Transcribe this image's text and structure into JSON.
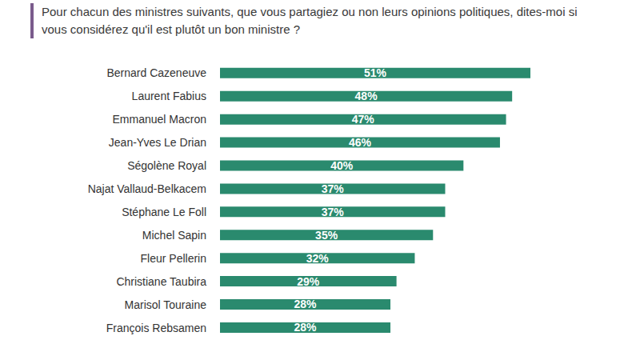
{
  "chart_data": {
    "type": "bar",
    "title": "Pour chacun des ministres suivants, que vous partagiez ou non leurs opinions politiques, dites-moi si vous considérez qu'il est plutôt un bon ministre ?",
    "orientation": "horizontal",
    "categories": [
      "Bernard Cazeneuve",
      "Laurent Fabius",
      "Emmanuel Macron",
      "Jean-Yves Le Drian",
      "Ségolène Royal",
      "Najat Vallaud-Belkacem",
      "Stéphane Le Foll",
      "Michel Sapin",
      "Fleur Pellerin",
      "Christiane Taubira",
      "Marisol Touraine",
      "François Rebsamen"
    ],
    "values": [
      51,
      48,
      47,
      46,
      40,
      37,
      37,
      35,
      32,
      29,
      28,
      28
    ],
    "value_labels": [
      "51%",
      "48%",
      "47%",
      "46%",
      "40%",
      "37%",
      "37%",
      "35%",
      "32%",
      "29%",
      "28%",
      "28%"
    ],
    "color": "#2a8a6e",
    "xlim": [
      0,
      51
    ],
    "data_labels": true,
    "tick_labels": "y",
    "grid": false
  }
}
